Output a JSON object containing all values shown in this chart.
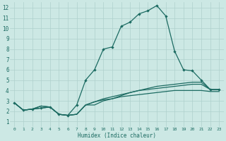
{
  "xlabel": "Humidex (Indice chaleur)",
  "bg_color": "#cce8e4",
  "grid_color": "#aed0cc",
  "line_color": "#1c6b62",
  "xlim": [
    -0.5,
    23.5
  ],
  "ylim": [
    0.5,
    12.5
  ],
  "xticks": [
    0,
    1,
    2,
    3,
    4,
    5,
    6,
    7,
    8,
    9,
    10,
    11,
    12,
    13,
    14,
    15,
    16,
    17,
    18,
    19,
    20,
    21,
    22,
    23
  ],
  "yticks": [
    1,
    2,
    3,
    4,
    5,
    6,
    7,
    8,
    9,
    10,
    11,
    12
  ],
  "line_main_x": [
    0,
    1,
    2,
    3,
    4,
    5,
    6,
    7,
    8,
    9,
    10,
    11,
    12,
    13,
    14,
    15,
    16,
    17,
    18,
    19,
    20,
    21,
    22,
    23
  ],
  "line_main_y": [
    2.8,
    2.1,
    2.2,
    2.3,
    2.4,
    1.7,
    1.6,
    2.6,
    5.0,
    6.0,
    8.0,
    8.2,
    10.2,
    10.6,
    11.4,
    11.7,
    12.2,
    11.2,
    7.8,
    6.0,
    5.9,
    5.0,
    4.1,
    4.1
  ],
  "line2_x": [
    0,
    1,
    2,
    3,
    4,
    5,
    6,
    7,
    8,
    9,
    10,
    11,
    12,
    13,
    14,
    15,
    16,
    17,
    18,
    19,
    20,
    21,
    22,
    23
  ],
  "line2_y": [
    2.8,
    2.1,
    2.2,
    2.3,
    2.4,
    1.7,
    1.6,
    1.7,
    2.6,
    2.6,
    3.0,
    3.2,
    3.5,
    3.8,
    4.0,
    4.2,
    4.4,
    4.5,
    4.6,
    4.7,
    4.8,
    4.8,
    4.1,
    4.1
  ],
  "line3_x": [
    0,
    1,
    2,
    3,
    4,
    5,
    6,
    7,
    8,
    9,
    10,
    11,
    12,
    13,
    14,
    15,
    16,
    17,
    18,
    19,
    20,
    21,
    22,
    23
  ],
  "line3_y": [
    2.8,
    2.1,
    2.2,
    2.5,
    2.4,
    1.7,
    1.6,
    1.7,
    2.6,
    2.9,
    3.2,
    3.4,
    3.6,
    3.8,
    4.0,
    4.1,
    4.2,
    4.3,
    4.4,
    4.5,
    4.6,
    4.6,
    4.1,
    4.1
  ],
  "line4_x": [
    0,
    1,
    2,
    3,
    4,
    5,
    6,
    7,
    8,
    9,
    10,
    11,
    12,
    13,
    14,
    15,
    16,
    17,
    18,
    19,
    20,
    21,
    22,
    23
  ],
  "line4_y": [
    2.8,
    2.1,
    2.2,
    2.5,
    2.4,
    1.7,
    1.6,
    1.7,
    2.6,
    2.9,
    3.1,
    3.2,
    3.4,
    3.5,
    3.6,
    3.7,
    3.8,
    3.9,
    4.0,
    4.0,
    4.0,
    4.0,
    3.9,
    3.9
  ]
}
